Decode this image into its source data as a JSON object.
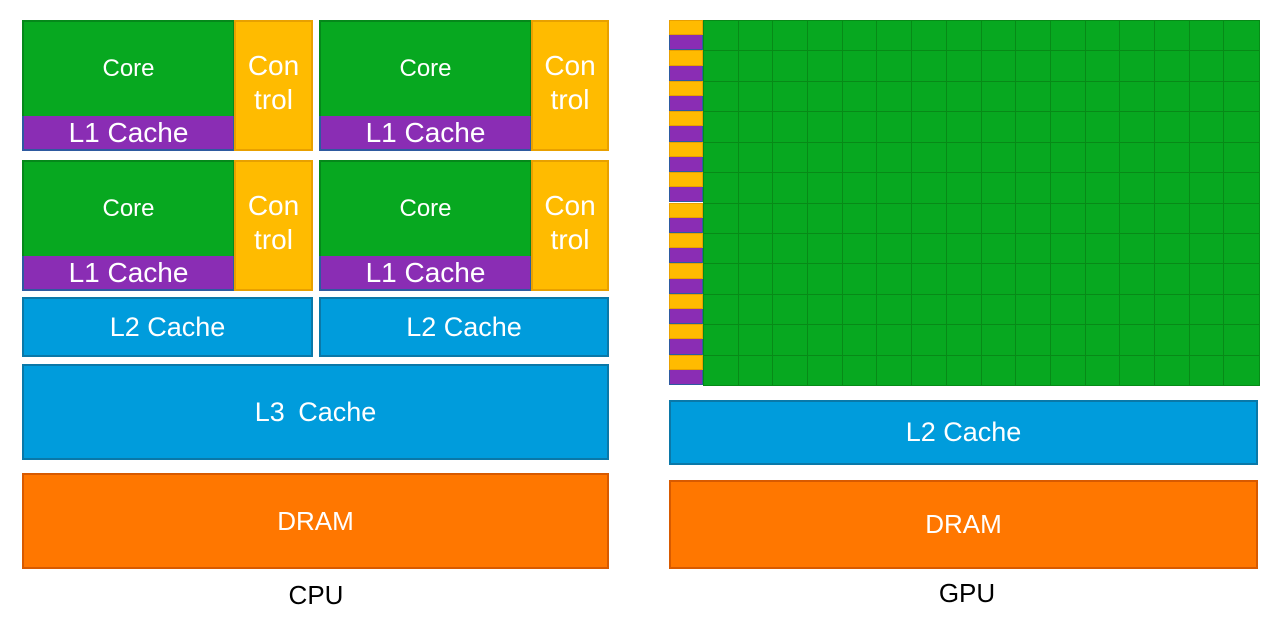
{
  "cpu": {
    "label": "CPU",
    "cores": [
      {
        "core": "Core",
        "l1": "L1 Cache",
        "control_line1": "Con",
        "control_line2": "trol"
      },
      {
        "core": "Core",
        "l1": "L1 Cache",
        "control_line1": "Con",
        "control_line2": "trol"
      },
      {
        "core": "Core",
        "l1": "L1 Cache",
        "control_line1": "Con",
        "control_line2": "trol"
      },
      {
        "core": "Core",
        "l1": "L1 Cache",
        "control_line1": "Con",
        "control_line2": "trol"
      }
    ],
    "l2": [
      "L2 Cache",
      "L2 Cache"
    ],
    "l3": "L3 Cache",
    "dram": "DRAM"
  },
  "gpu": {
    "label": "GPU",
    "grid_rows": 12,
    "grid_cols": 16,
    "l2": "L2 Cache",
    "dram": "DRAM"
  },
  "colors": {
    "core": "#07a820",
    "l1_cache": "#8a2db4",
    "control": "#ffbb00",
    "cache": "#009cdc",
    "dram": "#ff7700"
  }
}
